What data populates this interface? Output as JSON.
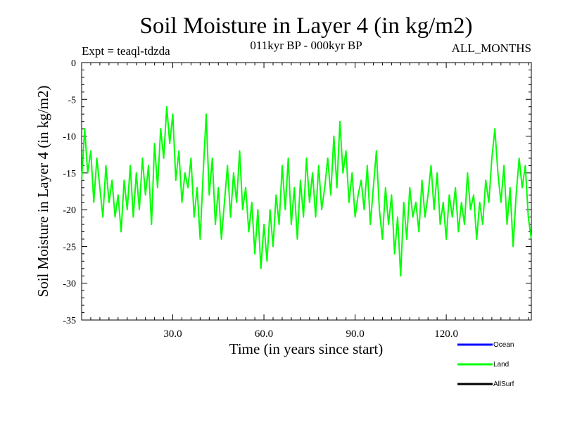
{
  "chart_data": {
    "type": "line",
    "title": "Soil Moisture in Layer 4 (in kg/m2)",
    "subtitle_left": "Expt = teaql-tdzda",
    "subtitle_center": "011kyr BP - 000kyr BP",
    "subtitle_right": "ALL_MONTHS",
    "xlabel": "Time (in years since start)",
    "ylabel": "Soil Moisture in Layer 4 (in kg/m2)",
    "xlim": [
      0,
      148
    ],
    "ylim": [
      -35,
      0
    ],
    "x_ticks": [
      30,
      60,
      90,
      120
    ],
    "x_tick_labels": [
      "30.0",
      "60.0",
      "90.0",
      "120.0"
    ],
    "y_ticks": [
      0,
      -5,
      -10,
      -15,
      -20,
      -25,
      -30,
      -35
    ],
    "y_tick_labels": [
      "0",
      "-5",
      "-10",
      "-15",
      "-20",
      "-25",
      "-30",
      "-35"
    ],
    "legend": [
      "Ocean",
      "Land",
      "AllSurf"
    ],
    "legend_position": "bottom-right",
    "colors": {
      "Ocean": "#0000ff",
      "Land": "#00ff00",
      "AllSurf": "#000000"
    },
    "series": [
      {
        "name": "Land",
        "color": "#00ff00",
        "x": [
          0,
          1,
          2,
          3,
          4,
          5,
          6,
          7,
          8,
          9,
          10,
          11,
          12,
          13,
          14,
          15,
          16,
          17,
          18,
          19,
          20,
          21,
          22,
          23,
          24,
          25,
          26,
          27,
          28,
          29,
          30,
          31,
          32,
          33,
          34,
          35,
          36,
          37,
          38,
          39,
          40,
          41,
          42,
          43,
          44,
          45,
          46,
          47,
          48,
          49,
          50,
          51,
          52,
          53,
          54,
          55,
          56,
          57,
          58,
          59,
          60,
          61,
          62,
          63,
          64,
          65,
          66,
          67,
          68,
          69,
          70,
          71,
          72,
          73,
          74,
          75,
          76,
          77,
          78,
          79,
          80,
          81,
          82,
          83,
          84,
          85,
          86,
          87,
          88,
          89,
          90,
          91,
          92,
          93,
          94,
          95,
          96,
          97,
          98,
          99,
          100,
          101,
          102,
          103,
          104,
          105,
          106,
          107,
          108,
          109,
          110,
          111,
          112,
          113,
          114,
          115,
          116,
          117,
          118,
          119,
          120,
          121,
          122,
          123,
          124,
          125,
          126,
          127,
          128,
          129,
          130,
          131,
          132,
          133,
          134,
          135,
          136,
          137,
          138,
          139,
          140,
          141,
          142,
          143,
          144,
          145,
          146,
          147,
          148
        ],
        "values": [
          -16,
          -9,
          -15,
          -12,
          -19,
          -13,
          -17,
          -21,
          -14,
          -19,
          -16,
          -21,
          -18,
          -23,
          -16,
          -20,
          -14,
          -21,
          -15,
          -20,
          -13,
          -18,
          -14,
          -22,
          -11,
          -17,
          -9,
          -13,
          -6,
          -11,
          -7,
          -16,
          -12,
          -19,
          -15,
          -17,
          -13,
          -21,
          -17,
          -24,
          -15,
          -7,
          -18,
          -13,
          -22,
          -17,
          -24,
          -19,
          -14,
          -21,
          -15,
          -19,
          -12,
          -20,
          -17,
          -23,
          -19,
          -26,
          -20,
          -28,
          -22,
          -27,
          -20,
          -25,
          -18,
          -22,
          -14,
          -20,
          -13,
          -22,
          -17,
          -24,
          -16,
          -21,
          -13,
          -19,
          -15,
          -21,
          -14,
          -20,
          -17,
          -13,
          -18,
          -10,
          -17,
          -8,
          -15,
          -12,
          -19,
          -15,
          -21,
          -18,
          -16,
          -20,
          -14,
          -22,
          -17,
          -12,
          -20,
          -24,
          -17,
          -22,
          -18,
          -26,
          -21,
          -29,
          -19,
          -24,
          -17,
          -21,
          -19,
          -23,
          -16,
          -21,
          -18,
          -14,
          -20,
          -15,
          -22,
          -19,
          -24,
          -18,
          -21,
          -17,
          -23,
          -19,
          -22,
          -15,
          -20,
          -18,
          -24,
          -19,
          -22,
          -16,
          -19,
          -13,
          -9,
          -15,
          -19,
          -14,
          -22,
          -17,
          -25,
          -18,
          -13,
          -17,
          -14,
          -21,
          -24
        ]
      }
    ]
  }
}
